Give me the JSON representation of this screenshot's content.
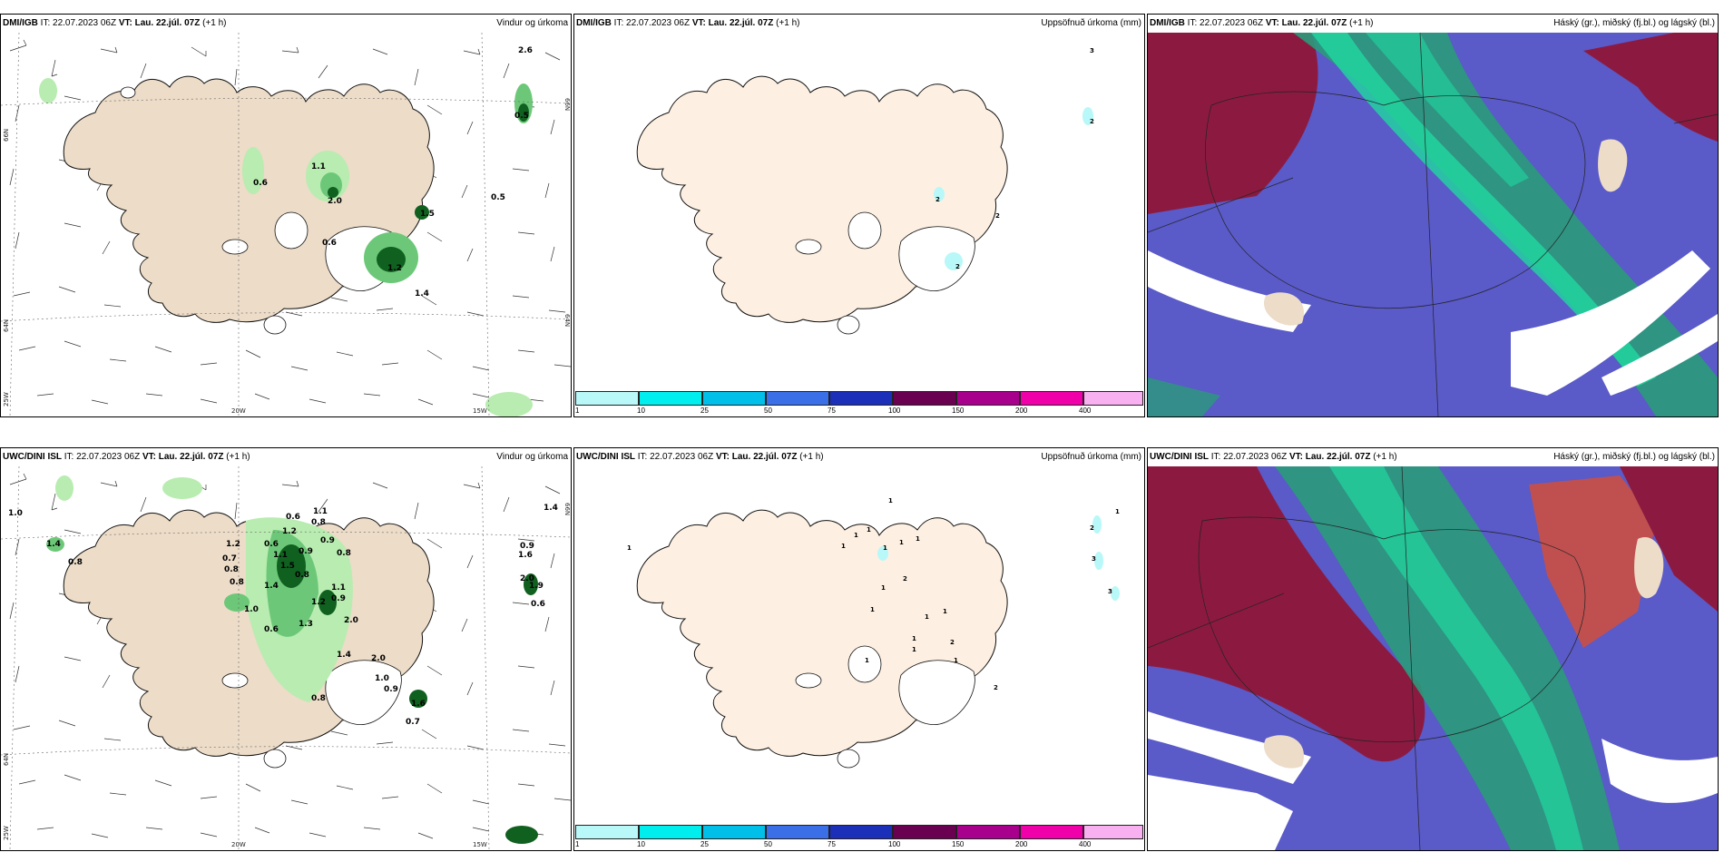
{
  "panels": {
    "p1": {
      "model": "DMI/IGB",
      "it_label": "IT:",
      "it_value": "22.07.2023 06Z",
      "vt_label": "VT: Lau. 22.júl. 07Z",
      "offset": "(+1 h)",
      "field": "Vindur og úrkoma"
    },
    "p2": {
      "model": "DMI/IGB",
      "it_label": "IT:",
      "it_value": "22.07.2023 06Z",
      "vt_label": "VT: Lau. 22.júl. 07Z",
      "offset": "(+1 h)",
      "field": "Uppsöfnuð úrkoma (mm)"
    },
    "p3": {
      "model": "DMI/IGB",
      "it_label": "IT:",
      "it_value": "22.07.2023 06Z",
      "vt_label": "VT: Lau. 22.júl. 07Z",
      "offset": "(+1 h)",
      "field": "Háský (gr.), miðský (fj.bl.) og lágský (bl.)"
    },
    "p4": {
      "model": "UWC/DINI ISL",
      "it_label": "IT:",
      "it_value": "22.07.2023 06Z",
      "vt_label": "VT: Lau. 22.júl. 07Z",
      "offset": "(+1 h)",
      "field": "Vindur og úrkoma"
    },
    "p5": {
      "model": "UWC/DINI ISL",
      "it_label": "IT:",
      "it_value": "22.07.2023 06Z",
      "vt_label": "VT: Lau. 22.júl. 07Z",
      "offset": "(+1 h)",
      "field": "Uppsöfnuð úrkoma (mm)"
    },
    "p6": {
      "model": "UWC/DINI ISL",
      "it_label": "IT:",
      "it_value": "22.07.2023 06Z",
      "vt_label": "VT: Lau. 22.júl. 07Z",
      "offset": "(+1 h)",
      "field": "Háský (gr.), miðský (fj.bl.) og lágský (bl.)"
    }
  },
  "axes": {
    "lon_20w": "20W",
    "lon_15w": "15W",
    "lon_25w": "25W",
    "lat_66n": "66N",
    "lat_64n": "64N"
  },
  "colorbar": {
    "ticks": [
      "1",
      "10",
      "25",
      "50",
      "75",
      "100",
      "150",
      "200",
      "400"
    ],
    "colors": [
      "#b8f8f8",
      "#00eeee",
      "#00bfe8",
      "#3a6fe8",
      "#1c2fb8",
      "#6a0050",
      "#a8008c",
      "#f000a8",
      "#f8b0f0"
    ]
  },
  "labels": {
    "p1_vals": [
      "2.6",
      "1.1",
      "0.6",
      "2.0",
      "0.5",
      "1.5",
      "0.6",
      "1.2",
      "1.4",
      "0.5"
    ],
    "p2_vals": [
      "3",
      "2",
      "2",
      "2",
      "2"
    ],
    "p4_vals": [
      "1.0",
      "1.4",
      "0.8",
      "0.6",
      "1.1",
      "0.8",
      "1.2",
      "0.9",
      "0.8",
      "0.7",
      "0.6",
      "0.9",
      "1.1",
      "0.8",
      "1.5",
      "0.8",
      "1.1",
      "1.2",
      "0.9",
      "1.3",
      "0.8",
      "1.4",
      "2.0",
      "1.0",
      "0.6",
      "1.6",
      "0.7",
      "0.8",
      "1.2",
      "0.9",
      "1.4",
      "2.0",
      "0.9",
      "1.0",
      "2.0",
      "1.6",
      "0.6",
      "1.4",
      "1.9"
    ],
    "p5_vals": [
      "1",
      "1",
      "1",
      "1",
      "1",
      "1",
      "2",
      "1",
      "1",
      "1",
      "1",
      "1",
      "2",
      "1",
      "1",
      "2",
      "2",
      "1",
      "3",
      "3",
      "1",
      "1",
      "1"
    ]
  },
  "colors": {
    "land": "#ecdcc8",
    "land_cream": "#fdf0e2",
    "precip_light": "#b8ecb0",
    "precip_mid": "#6cc878",
    "precip_dark": "#106020",
    "sky_blue": "#5a5ac8",
    "sky_red": "#8c1a40",
    "sky_green": "#2a9a7a",
    "sky_teal": "#20d8a0"
  }
}
